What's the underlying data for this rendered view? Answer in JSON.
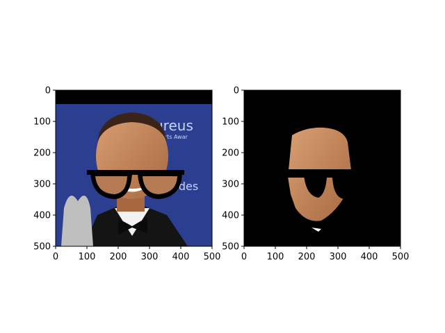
{
  "chart_data": [
    {
      "type": "image",
      "panel": "original-with-glasses",
      "description_visible": "photo of a smiling man in a tuxedo with bow tie, black eyeglasses overlay, blue backdrop with partial text",
      "backdrop_text": [
        "ureus",
        "orts Awar",
        "rcedes"
      ],
      "xlim": [
        0,
        500
      ],
      "ylim": [
        500,
        0
      ],
      "xticks": [
        0,
        100,
        200,
        300,
        400,
        500
      ],
      "yticks": [
        0,
        100,
        200,
        300,
        400,
        500
      ],
      "colors": {
        "backdrop": "#2c3e8f",
        "skin": "#c98a5e",
        "glasses": "#000000",
        "suit": "#141414"
      }
    },
    {
      "type": "image",
      "panel": "segmented-face-mask",
      "xlim": [
        0,
        500
      ],
      "ylim": [
        500,
        0
      ],
      "xticks": [
        0,
        100,
        200,
        300,
        400,
        500
      ],
      "yticks": [
        0,
        100,
        200,
        300,
        400,
        500
      ],
      "colors": {
        "background": "#000000",
        "skin": "#c98a5e"
      }
    }
  ]
}
